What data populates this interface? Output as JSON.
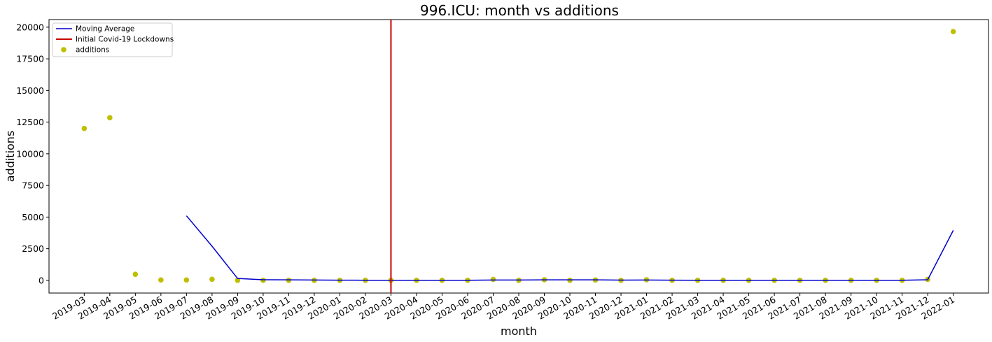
{
  "chart_data": {
    "type": "scatter",
    "title": "996.ICU: month vs additions",
    "xlabel": "month",
    "ylabel": "additions",
    "categories": [
      "2019-03",
      "2019-04",
      "2019-05",
      "2019-06",
      "2019-07",
      "2019-08",
      "2019-09",
      "2019-10",
      "2019-11",
      "2019-12",
      "2020-01",
      "2020-02",
      "2020-03",
      "2020-04",
      "2020-05",
      "2020-06",
      "2020-07",
      "2020-08",
      "2020-09",
      "2020-10",
      "2020-11",
      "2020-12",
      "2021-01",
      "2021-02",
      "2021-03",
      "2021-04",
      "2021-05",
      "2021-06",
      "2021-07",
      "2021-08",
      "2021-09",
      "2021-10",
      "2021-11",
      "2021-12",
      "2022-01"
    ],
    "ylim": [
      -1000,
      20600
    ],
    "yticks": [
      0,
      2500,
      5000,
      7500,
      10000,
      12500,
      15000,
      17500,
      20000
    ],
    "grid": false,
    "legend_position": "top-left",
    "series": [
      {
        "name": "Moving Average",
        "kind": "line",
        "color": "#0000cc",
        "values": [
          null,
          null,
          null,
          null,
          5100,
          2700,
          150,
          50,
          40,
          30,
          15,
          10,
          10,
          10,
          10,
          10,
          30,
          30,
          40,
          40,
          40,
          20,
          30,
          15,
          10,
          10,
          10,
          10,
          10,
          10,
          10,
          10,
          10,
          50,
          3950
        ]
      },
      {
        "name": "additions",
        "kind": "scatter",
        "color": "#bfbf00",
        "values": [
          12000,
          12850,
          480,
          30,
          30,
          90,
          5,
          5,
          5,
          5,
          5,
          5,
          5,
          5,
          5,
          5,
          80,
          5,
          50,
          5,
          30,
          5,
          50,
          5,
          5,
          5,
          5,
          5,
          5,
          5,
          5,
          5,
          5,
          80,
          19650
        ]
      }
    ],
    "vlines": [
      {
        "name": "Initial Covid-19 Lockdowns",
        "x": "2020-03",
        "color": "#cc0000"
      }
    ]
  }
}
